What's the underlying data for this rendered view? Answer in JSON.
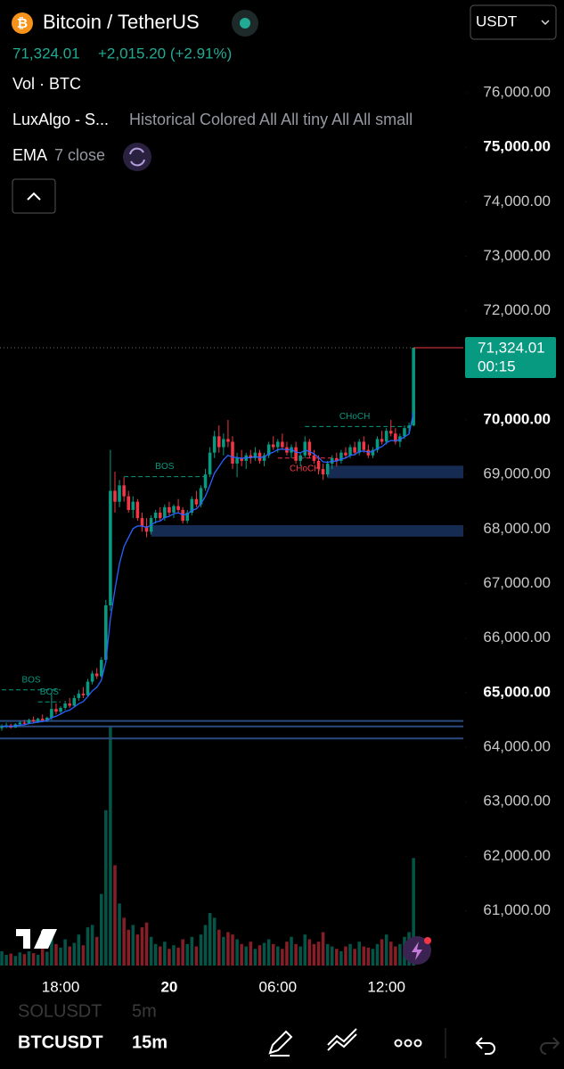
{
  "header": {
    "symbol": "Bitcoin / TetherUS",
    "price": "71,324.01",
    "change": "+2,015.20 (+2.91%)",
    "currency": "USDT"
  },
  "indicators": [
    {
      "name": "Vol · BTC"
    },
    {
      "name": "LuxAlgo - S...",
      "params": "Historical Colored All All tiny All All small"
    },
    {
      "name": "EMA",
      "params": "7 close"
    }
  ],
  "chart_data": {
    "type": "candlestick",
    "up_color": "#089981",
    "down_color": "#f23645",
    "ema_color": "#2962ff",
    "ema_period": 7,
    "ylim": [
      59880,
      77700
    ],
    "xlim": [
      -0.4,
      102
    ],
    "yticks": [
      {
        "value": 61000,
        "label": "61,000.00"
      },
      {
        "value": 62000,
        "label": "62,000.00"
      },
      {
        "value": 63000,
        "label": "63,000.00"
      },
      {
        "value": 64000,
        "label": "64,000.00"
      },
      {
        "value": 65000,
        "label": "65,000.00"
      },
      {
        "value": 66000,
        "label": "66,000.00"
      },
      {
        "value": 67000,
        "label": "67,000.00"
      },
      {
        "value": 68000,
        "label": "68,000.00"
      },
      {
        "value": 69000,
        "label": "69,000.00"
      },
      {
        "value": 70000,
        "label": "70,000.00"
      },
      {
        "value": 72000,
        "label": "72,000.00"
      },
      {
        "value": 73000,
        "label": "73,000.00"
      },
      {
        "value": 74000,
        "label": "74,000.00"
      },
      {
        "value": 75000,
        "label": "75,000.00"
      },
      {
        "value": 76000,
        "label": "76,000.00"
      }
    ],
    "xticks": [
      {
        "value": 13,
        "label": "18:00"
      },
      {
        "value": 37,
        "label": "20"
      },
      {
        "value": 61,
        "label": "06:00"
      },
      {
        "value": 85,
        "label": "12:00"
      }
    ],
    "last_price": {
      "value": 71324.01,
      "label": "71,324.01",
      "countdown": "00:15"
    },
    "candles": [
      [
        64350,
        64420,
        64300,
        64380
      ],
      [
        64380,
        64450,
        64350,
        64400
      ],
      [
        64400,
        64430,
        64340,
        64360
      ],
      [
        64360,
        64440,
        64350,
        64420
      ],
      [
        64420,
        64480,
        64380,
        64450
      ],
      [
        64450,
        64500,
        64400,
        64430
      ],
      [
        64430,
        64520,
        64420,
        64500
      ],
      [
        64500,
        64560,
        64450,
        64470
      ],
      [
        64470,
        64540,
        64440,
        64520
      ],
      [
        64520,
        64600,
        64480,
        64490
      ],
      [
        64490,
        64560,
        64460,
        64540
      ],
      [
        64540,
        64980,
        64500,
        64700
      ],
      [
        64700,
        64800,
        64600,
        64650
      ],
      [
        64650,
        64750,
        64600,
        64720
      ],
      [
        64720,
        64850,
        64680,
        64800
      ],
      [
        64800,
        64900,
        64720,
        64760
      ],
      [
        64760,
        64950,
        64740,
        64900
      ],
      [
        64900,
        65050,
        64850,
        64980
      ],
      [
        64980,
        65100,
        64900,
        64950
      ],
      [
        64950,
        65250,
        64930,
        65200
      ],
      [
        65200,
        65400,
        65150,
        65350
      ],
      [
        65350,
        65450,
        65250,
        65300
      ],
      [
        65300,
        65650,
        65280,
        65600
      ],
      [
        65600,
        66700,
        65550,
        66600
      ],
      [
        66600,
        69450,
        66500,
        68700
      ],
      [
        68700,
        69050,
        68300,
        68500
      ],
      [
        68500,
        68900,
        68400,
        68800
      ],
      [
        68800,
        68950,
        68500,
        68600
      ],
      [
        68600,
        68700,
        68300,
        68350
      ],
      [
        68350,
        68600,
        68200,
        68500
      ],
      [
        68500,
        68550,
        68150,
        68200
      ],
      [
        68200,
        68300,
        67950,
        68050
      ],
      [
        68050,
        68200,
        67850,
        67950
      ],
      [
        67950,
        68250,
        67900,
        68200
      ],
      [
        68200,
        68350,
        68100,
        68300
      ],
      [
        68300,
        68400,
        68150,
        68200
      ],
      [
        68200,
        68450,
        68150,
        68400
      ],
      [
        68400,
        68500,
        68250,
        68300
      ],
      [
        68300,
        68450,
        68200,
        68420
      ],
      [
        68420,
        68550,
        68300,
        68350
      ],
      [
        68350,
        68400,
        68100,
        68150
      ],
      [
        68150,
        68350,
        68100,
        68300
      ],
      [
        68300,
        68600,
        68250,
        68550
      ],
      [
        68550,
        68700,
        68400,
        68450
      ],
      [
        68450,
        68800,
        68400,
        68750
      ],
      [
        68750,
        69100,
        68700,
        69000
      ],
      [
        69000,
        69500,
        68950,
        69400
      ],
      [
        69400,
        69800,
        69300,
        69700
      ],
      [
        69700,
        69900,
        69400,
        69500
      ],
      [
        69500,
        69750,
        69350,
        69650
      ],
      [
        69650,
        70000,
        69500,
        69600
      ],
      [
        69600,
        69700,
        69100,
        69200
      ],
      [
        69200,
        69400,
        68950,
        69300
      ],
      [
        69300,
        69450,
        69150,
        69250
      ],
      [
        69250,
        69400,
        69100,
        69350
      ],
      [
        69350,
        69450,
        69200,
        69300
      ],
      [
        69300,
        69500,
        69250,
        69400
      ],
      [
        69400,
        69450,
        69200,
        69250
      ],
      [
        69250,
        69400,
        69150,
        69350
      ],
      [
        69350,
        69600,
        69300,
        69550
      ],
      [
        69550,
        69700,
        69450,
        69500
      ],
      [
        69500,
        69650,
        69400,
        69600
      ],
      [
        69600,
        69750,
        69450,
        69500
      ],
      [
        69500,
        69600,
        69350,
        69400
      ],
      [
        69400,
        69550,
        69300,
        69500
      ],
      [
        69500,
        69600,
        69200,
        69250
      ],
      [
        69250,
        69400,
        69150,
        69350
      ],
      [
        69350,
        69700,
        69300,
        69600
      ],
      [
        69600,
        69650,
        69300,
        69350
      ],
      [
        69350,
        69450,
        69200,
        69250
      ],
      [
        69250,
        69350,
        69000,
        69100
      ],
      [
        69100,
        69200,
        68900,
        69000
      ],
      [
        69000,
        69250,
        68950,
        69200
      ],
      [
        69200,
        69350,
        69100,
        69300
      ],
      [
        69300,
        69400,
        69150,
        69250
      ],
      [
        69250,
        69450,
        69200,
        69400
      ],
      [
        69400,
        69500,
        69300,
        69350
      ],
      [
        69350,
        69550,
        69300,
        69500
      ],
      [
        69500,
        69600,
        69350,
        69400
      ],
      [
        69400,
        69650,
        69350,
        69600
      ],
      [
        69600,
        69700,
        69400,
        69450
      ],
      [
        69450,
        69550,
        69300,
        69350
      ],
      [
        69350,
        69500,
        69300,
        69450
      ],
      [
        69450,
        69700,
        69400,
        69650
      ],
      [
        69650,
        69800,
        69550,
        69600
      ],
      [
        69600,
        69850,
        69550,
        69800
      ],
      [
        69800,
        70000,
        69700,
        69750
      ],
      [
        69750,
        69850,
        69550,
        69600
      ],
      [
        69600,
        69750,
        69500,
        69700
      ],
      [
        69700,
        69900,
        69650,
        69850
      ],
      [
        69850,
        69950,
        69750,
        69900
      ],
      [
        69900,
        71324.01,
        69880,
        71324.01
      ]
    ],
    "volumes": [
      60,
      45,
      50,
      40,
      55,
      48,
      60,
      52,
      45,
      70,
      58,
      140,
      90,
      75,
      110,
      80,
      95,
      130,
      85,
      160,
      170,
      120,
      300,
      650,
      1000,
      420,
      260,
      200,
      150,
      170,
      130,
      160,
      180,
      120,
      90,
      80,
      100,
      70,
      85,
      75,
      110,
      90,
      120,
      80,
      130,
      170,
      220,
      200,
      150,
      120,
      140,
      130,
      110,
      90,
      80,
      100,
      70,
      85,
      95,
      110,
      90,
      80,
      70,
      100,
      120,
      90,
      80,
      130,
      110,
      90,
      100,
      140,
      90,
      80,
      70,
      60,
      80,
      90,
      70,
      100,
      80,
      75,
      70,
      90,
      110,
      130,
      100,
      80,
      90,
      120,
      140,
      450
    ],
    "zones": [
      {
        "from": 33,
        "low": 67860,
        "high": 68070
      },
      {
        "from": 72,
        "low": 68930,
        "high": 69160
      }
    ],
    "lines": [
      64480,
      64380,
      64160
    ],
    "structures": [
      {
        "label": "BOS",
        "level": 65050,
        "from": 0,
        "to": 13,
        "color": "#089981",
        "below": false
      },
      {
        "label": "BOS",
        "level": 64830,
        "from": 8,
        "to": 13,
        "color": "#089981",
        "below": false
      },
      {
        "label": "BOS",
        "level": 68960,
        "from": 27,
        "to": 45,
        "color": "#089981",
        "below": false
      },
      {
        "label": "CHoCH",
        "level": 69880,
        "from": 67,
        "to": 89,
        "color": "#089981",
        "below": false
      },
      {
        "label": "CHoCH",
        "level": 69300,
        "from": 61,
        "to": 73,
        "color": "#f23645",
        "below": true
      }
    ]
  },
  "toolbar": {
    "symbol": "BTCUSDT",
    "interval": "15m",
    "prev_symbol": "SOLUSDT",
    "prev_interval": "5m"
  }
}
